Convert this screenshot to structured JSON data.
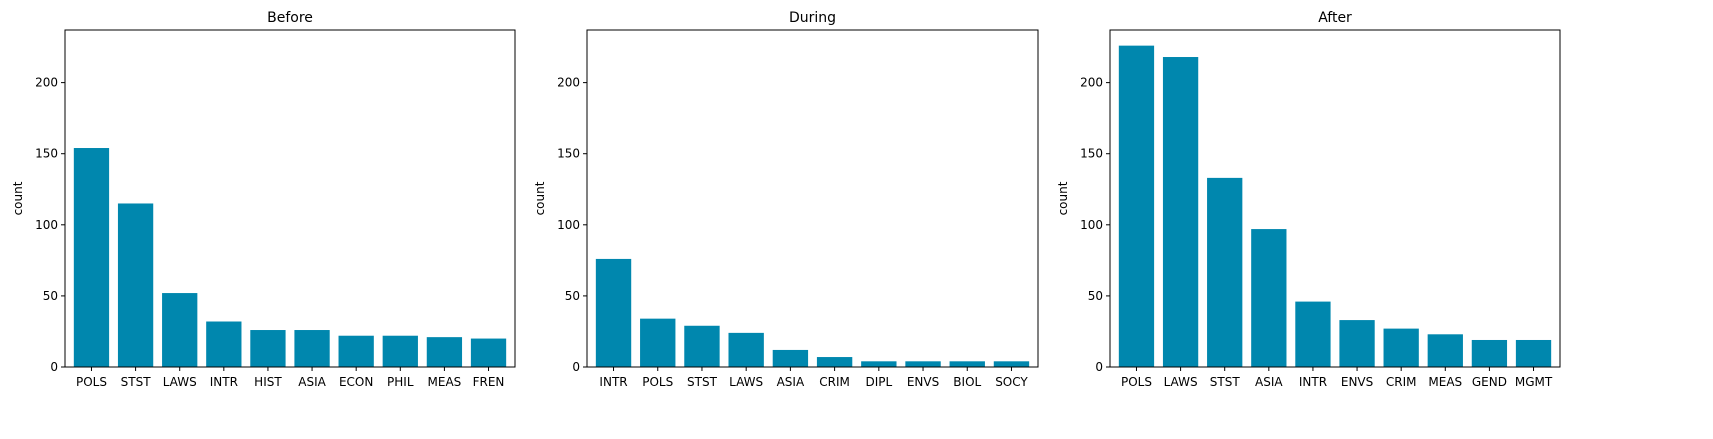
{
  "colors": {
    "bar": "#0087ae",
    "axis": "#000000",
    "text": "#000000"
  },
  "chart_data": [
    {
      "type": "bar",
      "title": "Before",
      "xlabel": "",
      "ylabel": "count",
      "categories": [
        "POLS",
        "STST",
        "LAWS",
        "INTR",
        "HIST",
        "ASIA",
        "ECON",
        "PHIL",
        "MEAS",
        "FREN"
      ],
      "values": [
        154,
        115,
        52,
        32,
        26,
        26,
        22,
        22,
        21,
        20
      ],
      "ylim": [
        0,
        237
      ],
      "yticks": [
        0,
        50,
        100,
        150,
        200
      ],
      "grid": false
    },
    {
      "type": "bar",
      "title": "During",
      "xlabel": "",
      "ylabel": "count",
      "categories": [
        "INTR",
        "POLS",
        "STST",
        "LAWS",
        "ASIA",
        "CRIM",
        "DIPL",
        "ENVS",
        "BIOL",
        "SOCY"
      ],
      "values": [
        76,
        34,
        29,
        24,
        12,
        7,
        4,
        4,
        4,
        4
      ],
      "ylim": [
        0,
        237
      ],
      "yticks": [
        0,
        50,
        100,
        150,
        200
      ],
      "grid": false
    },
    {
      "type": "bar",
      "title": "After",
      "xlabel": "",
      "ylabel": "count",
      "categories": [
        "POLS",
        "LAWS",
        "STST",
        "ASIA",
        "INTR",
        "ENVS",
        "CRIM",
        "MEAS",
        "GEND",
        "MGMT"
      ],
      "values": [
        226,
        218,
        133,
        97,
        46,
        33,
        27,
        23,
        19,
        19
      ],
      "ylim": [
        0,
        237
      ],
      "yticks": [
        0,
        50,
        100,
        150,
        200
      ],
      "grid": false
    }
  ]
}
